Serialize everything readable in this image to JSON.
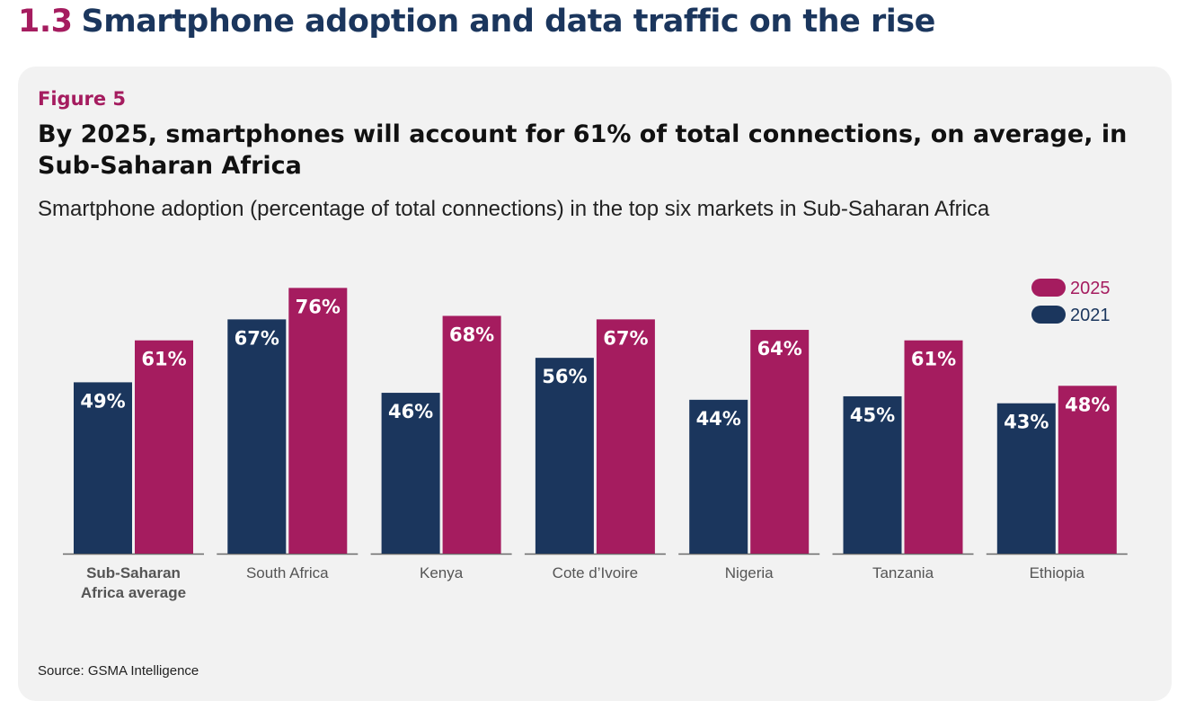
{
  "header": {
    "section_number": "1.3",
    "section_title": "Smartphone adoption and data traffic on the rise"
  },
  "figure": {
    "label": "Figure 5",
    "title": "By 2025, smartphones will account for 61% of total connections, on average, in Sub-Saharan Africa",
    "subtitle": "Smartphone adoption (percentage of total connections) in the top six markets in Sub-Saharan Africa",
    "source": "Source: GSMA Intelligence"
  },
  "chart_data": {
    "type": "bar",
    "categories": [
      "Sub-Saharan Africa average",
      "South Africa",
      "Kenya",
      "Cote d’Ivoire",
      "Nigeria",
      "Tanzania",
      "Ethiopia"
    ],
    "category_lines": [
      [
        "Sub-Saharan",
        "Africa average"
      ],
      [
        "South Africa"
      ],
      [
        "Kenya"
      ],
      [
        "Cote d’Ivoire"
      ],
      [
        "Nigeria"
      ],
      [
        "Tanzania"
      ],
      [
        "Ethiopia"
      ]
    ],
    "highlighted_category": "Sub-Saharan Africa average",
    "series": [
      {
        "name": "2021",
        "color": "#1b365d",
        "values": [
          49,
          67,
          46,
          56,
          44,
          45,
          43
        ],
        "labels": [
          "49%",
          "67%",
          "46%",
          "56%",
          "44%",
          "45%",
          "43%"
        ]
      },
      {
        "name": "2025",
        "color": "#a51c5f",
        "values": [
          61,
          76,
          68,
          67,
          64,
          61,
          48
        ],
        "labels": [
          "61%",
          "76%",
          "68%",
          "67%",
          "64%",
          "61%",
          "48%"
        ]
      }
    ],
    "legend_order": [
      "2025",
      "2021"
    ],
    "legend_position": "top-right",
    "ylim": [
      0,
      80
    ],
    "grid": false
  }
}
